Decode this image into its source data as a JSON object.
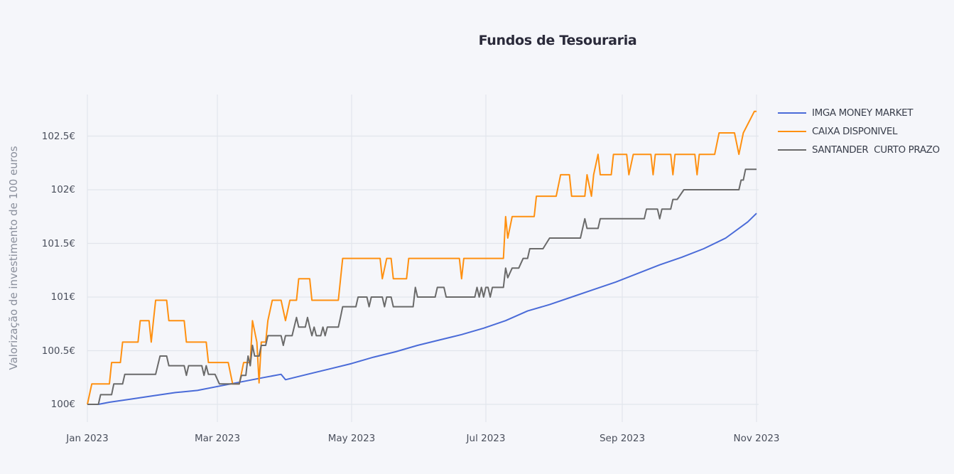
{
  "chart_data": {
    "type": "line",
    "title": "Fundos de Tesouraria",
    "xlabel": "",
    "ylabel": "Valorização de investimento de 100 euros",
    "ylim": [
      99.85,
      102.95
    ],
    "grid": true,
    "legend_position": "right",
    "x_ticks": [
      "Jan 2023",
      "Mar 2023",
      "May 2023",
      "Jul 2023",
      "Sep 2023",
      "Nov 2023"
    ],
    "y_ticks": [
      "100€",
      "100.5€",
      "101€",
      "101.5€",
      "102€",
      "102.5€"
    ],
    "x_domain_days": [
      0,
      304
    ],
    "series": [
      {
        "name": "IMGA MONEY MARKET",
        "color": "#4a6bd8",
        "points": [
          [
            0,
            100.0
          ],
          [
            5,
            100.0
          ],
          [
            10,
            100.02
          ],
          [
            20,
            100.05
          ],
          [
            30,
            100.08
          ],
          [
            40,
            100.11
          ],
          [
            50,
            100.13
          ],
          [
            60,
            100.17
          ],
          [
            70,
            100.21
          ],
          [
            80,
            100.25
          ],
          [
            88,
            100.28
          ],
          [
            90,
            100.23
          ],
          [
            100,
            100.28
          ],
          [
            110,
            100.33
          ],
          [
            120,
            100.38
          ],
          [
            130,
            100.44
          ],
          [
            140,
            100.49
          ],
          [
            150,
            100.55
          ],
          [
            160,
            100.6
          ],
          [
            170,
            100.65
          ],
          [
            180,
            100.71
          ],
          [
            190,
            100.78
          ],
          [
            200,
            100.87
          ],
          [
            210,
            100.93
          ],
          [
            220,
            101.0
          ],
          [
            230,
            101.07
          ],
          [
            240,
            101.14
          ],
          [
            250,
            101.22
          ],
          [
            260,
            101.3
          ],
          [
            270,
            101.37
          ],
          [
            280,
            101.45
          ],
          [
            290,
            101.55
          ],
          [
            300,
            101.7
          ],
          [
            304,
            101.78
          ]
        ]
      },
      {
        "name": "CAIXA DISPONIVEL",
        "color": "#ff9010",
        "points": [
          [
            0,
            100.0
          ],
          [
            2,
            100.19
          ],
          [
            10,
            100.19
          ],
          [
            11,
            100.39
          ],
          [
            15,
            100.39
          ],
          [
            16,
            100.58
          ],
          [
            23,
            100.58
          ],
          [
            24,
            100.78
          ],
          [
            28,
            100.78
          ],
          [
            29,
            100.58
          ],
          [
            30,
            100.78
          ],
          [
            31,
            100.97
          ],
          [
            36,
            100.97
          ],
          [
            37,
            100.78
          ],
          [
            44,
            100.78
          ],
          [
            45,
            100.58
          ],
          [
            54,
            100.58
          ],
          [
            55,
            100.39
          ],
          [
            64,
            100.39
          ],
          [
            66,
            100.19
          ],
          [
            69,
            100.19
          ],
          [
            71,
            100.39
          ],
          [
            74,
            100.39
          ],
          [
            75,
            100.78
          ],
          [
            77,
            100.58
          ],
          [
            78,
            100.2
          ],
          [
            79,
            100.58
          ],
          [
            81,
            100.58
          ],
          [
            82,
            100.78
          ],
          [
            84,
            100.97
          ],
          [
            88,
            100.97
          ],
          [
            90,
            100.78
          ],
          [
            92,
            100.97
          ],
          [
            95,
            100.97
          ],
          [
            96,
            101.17
          ],
          [
            101,
            101.17
          ],
          [
            102,
            100.97
          ],
          [
            114,
            100.97
          ],
          [
            116,
            101.36
          ],
          [
            133,
            101.36
          ],
          [
            134,
            101.17
          ],
          [
            136,
            101.36
          ],
          [
            138,
            101.36
          ],
          [
            139,
            101.17
          ],
          [
            145,
            101.17
          ],
          [
            146,
            101.36
          ],
          [
            169,
            101.36
          ],
          [
            170,
            101.17
          ],
          [
            171,
            101.36
          ],
          [
            189,
            101.36
          ],
          [
            190,
            101.75
          ],
          [
            191,
            101.55
          ],
          [
            193,
            101.75
          ],
          [
            203,
            101.75
          ],
          [
            204,
            101.94
          ],
          [
            213,
            101.94
          ],
          [
            215,
            102.14
          ],
          [
            219,
            102.14
          ],
          [
            220,
            101.94
          ],
          [
            226,
            101.94
          ],
          [
            227,
            102.14
          ],
          [
            229,
            101.94
          ],
          [
            230,
            102.14
          ],
          [
            232,
            102.33
          ],
          [
            233,
            102.14
          ],
          [
            238,
            102.14
          ],
          [
            239,
            102.33
          ],
          [
            245,
            102.33
          ],
          [
            246,
            102.14
          ],
          [
            248,
            102.33
          ],
          [
            256,
            102.33
          ],
          [
            257,
            102.14
          ],
          [
            258,
            102.33
          ],
          [
            265,
            102.33
          ],
          [
            266,
            102.14
          ],
          [
            267,
            102.33
          ],
          [
            276,
            102.33
          ],
          [
            277,
            102.14
          ],
          [
            278,
            102.33
          ],
          [
            285,
            102.33
          ],
          [
            287,
            102.53
          ],
          [
            294,
            102.53
          ],
          [
            296,
            102.33
          ],
          [
            298,
            102.53
          ],
          [
            303,
            102.73
          ],
          [
            304,
            102.73
          ]
        ]
      },
      {
        "name": "SANTANDER  CURTO PRAZO",
        "color": "#6a6a6a",
        "points": [
          [
            0,
            100.0
          ],
          [
            5,
            100.0
          ],
          [
            6,
            100.09
          ],
          [
            11,
            100.09
          ],
          [
            12,
            100.19
          ],
          [
            16,
            100.19
          ],
          [
            17,
            100.28
          ],
          [
            31,
            100.28
          ],
          [
            33,
            100.45
          ],
          [
            36,
            100.45
          ],
          [
            37,
            100.36
          ],
          [
            44,
            100.36
          ],
          [
            45,
            100.27
          ],
          [
            46,
            100.36
          ],
          [
            52,
            100.36
          ],
          [
            53,
            100.27
          ],
          [
            54,
            100.36
          ],
          [
            55,
            100.28
          ],
          [
            58,
            100.28
          ],
          [
            60,
            100.19
          ],
          [
            69,
            100.19
          ],
          [
            70,
            100.27
          ],
          [
            72,
            100.27
          ],
          [
            73,
            100.45
          ],
          [
            74,
            100.36
          ],
          [
            75,
            100.55
          ],
          [
            76,
            100.45
          ],
          [
            78,
            100.45
          ],
          [
            79,
            100.55
          ],
          [
            81,
            100.55
          ],
          [
            82,
            100.64
          ],
          [
            88,
            100.64
          ],
          [
            89,
            100.55
          ],
          [
            90,
            100.64
          ],
          [
            93,
            100.64
          ],
          [
            95,
            100.81
          ],
          [
            96,
            100.72
          ],
          [
            99,
            100.72
          ],
          [
            100,
            100.81
          ],
          [
            101,
            100.72
          ],
          [
            102,
            100.64
          ],
          [
            103,
            100.72
          ],
          [
            104,
            100.64
          ],
          [
            106,
            100.64
          ],
          [
            107,
            100.72
          ],
          [
            108,
            100.64
          ],
          [
            109,
            100.72
          ],
          [
            114,
            100.72
          ],
          [
            115,
            100.81
          ],
          [
            116,
            100.91
          ],
          [
            122,
            100.91
          ],
          [
            123,
            101.0
          ],
          [
            127,
            101.0
          ],
          [
            128,
            100.91
          ],
          [
            129,
            101.0
          ],
          [
            134,
            101.0
          ],
          [
            135,
            100.91
          ],
          [
            136,
            101.0
          ],
          [
            138,
            101.0
          ],
          [
            139,
            100.91
          ],
          [
            148,
            100.91
          ],
          [
            149,
            101.09
          ],
          [
            150,
            101.0
          ],
          [
            158,
            101.0
          ],
          [
            159,
            101.09
          ],
          [
            162,
            101.09
          ],
          [
            163,
            101.0
          ],
          [
            176,
            101.0
          ],
          [
            177,
            101.09
          ],
          [
            178,
            101.0
          ],
          [
            179,
            101.09
          ],
          [
            180,
            101.0
          ],
          [
            181,
            101.09
          ],
          [
            182,
            101.09
          ],
          [
            183,
            101.0
          ],
          [
            184,
            101.09
          ],
          [
            189,
            101.09
          ],
          [
            190,
            101.27
          ],
          [
            191,
            101.18
          ],
          [
            193,
            101.27
          ],
          [
            196,
            101.27
          ],
          [
            198,
            101.36
          ],
          [
            200,
            101.36
          ],
          [
            201,
            101.45
          ],
          [
            207,
            101.45
          ],
          [
            210,
            101.55
          ],
          [
            224,
            101.55
          ],
          [
            226,
            101.73
          ],
          [
            227,
            101.64
          ],
          [
            232,
            101.64
          ],
          [
            233,
            101.73
          ],
          [
            253,
            101.73
          ],
          [
            254,
            101.82
          ],
          [
            259,
            101.82
          ],
          [
            260,
            101.73
          ],
          [
            261,
            101.82
          ],
          [
            265,
            101.82
          ],
          [
            266,
            101.91
          ],
          [
            268,
            101.91
          ],
          [
            271,
            102.0
          ],
          [
            284,
            102.0
          ],
          [
            296,
            102.0
          ],
          [
            297,
            102.09
          ],
          [
            298,
            102.09
          ],
          [
            299,
            102.19
          ],
          [
            304,
            102.19
          ]
        ]
      }
    ]
  },
  "legend": {
    "items": [
      {
        "label": "IMGA MONEY MARKET",
        "color": "#4a6bd8"
      },
      {
        "label": "CAIXA DISPONIVEL",
        "color": "#ff9010"
      },
      {
        "label": "SANTANDER  CURTO PRAZO",
        "color": "#6a6a6a"
      }
    ]
  }
}
